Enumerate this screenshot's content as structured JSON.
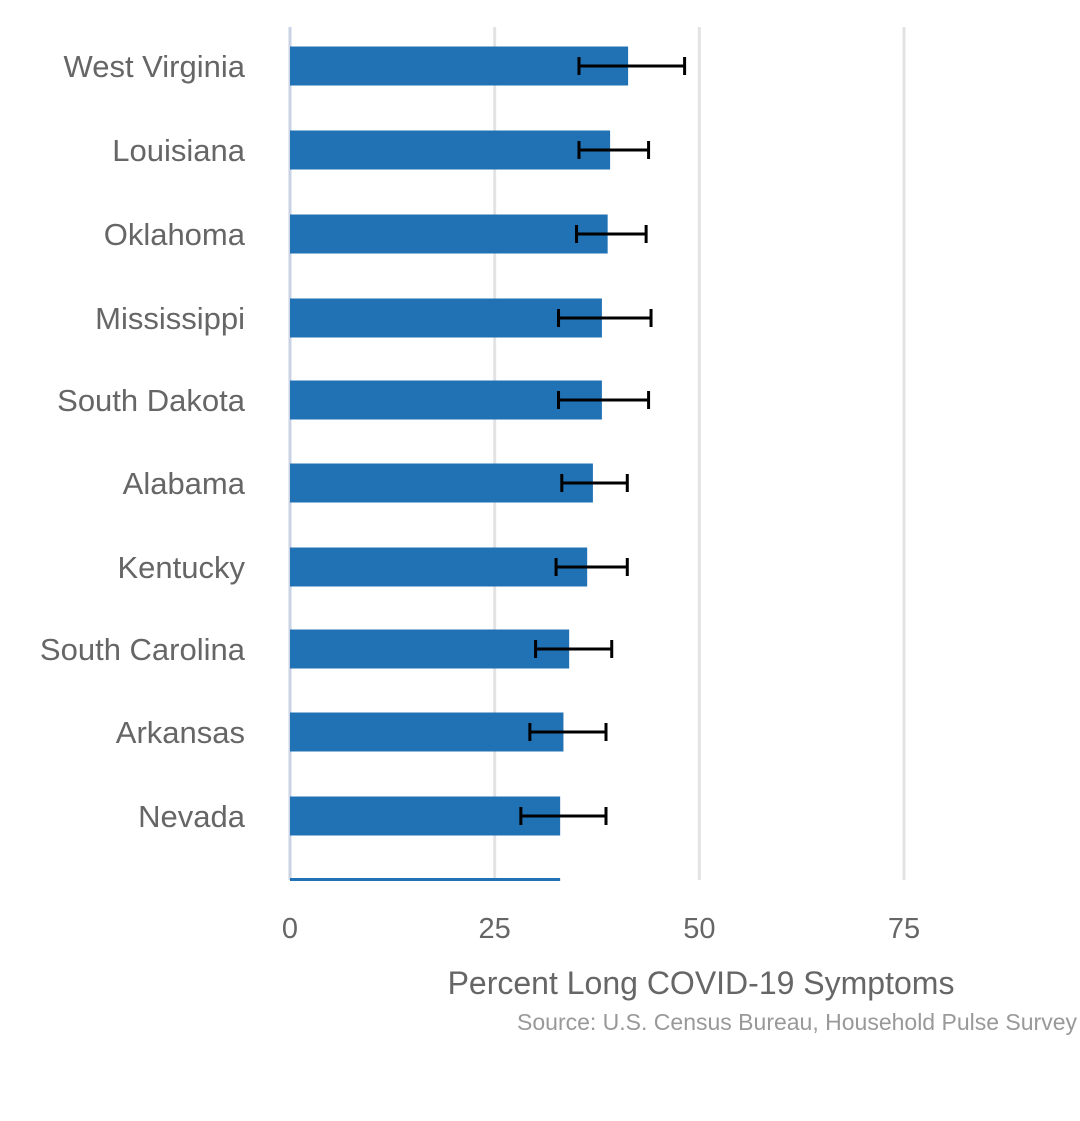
{
  "chart_data": {
    "type": "bar",
    "orientation": "horizontal",
    "categories": [
      "West Virginia",
      "Louisiana",
      "Oklahoma",
      "Mississippi",
      "South Dakota",
      "Alabama",
      "Kentucky",
      "South Carolina",
      "Arkansas",
      "Nevada"
    ],
    "values": [
      41.3,
      39.1,
      38.8,
      38.1,
      38.1,
      37.0,
      36.3,
      34.1,
      33.4,
      33.0
    ],
    "error_low": [
      35.3,
      35.3,
      35.0,
      32.8,
      32.8,
      33.2,
      32.5,
      30.0,
      29.3,
      28.2
    ],
    "error_high": [
      48.2,
      43.8,
      43.5,
      44.1,
      43.8,
      41.2,
      41.2,
      39.3,
      38.6,
      38.6
    ],
    "xlabel": "Percent Long COVID-19 Symptoms",
    "ylabel": "",
    "xlim": [
      0,
      75
    ],
    "xticks": [
      0,
      25,
      50,
      75
    ],
    "tick_labels": [
      "0",
      "25",
      "50",
      "75"
    ],
    "grid": true,
    "bar_color": "#2171b5",
    "error_color": "#000000",
    "grid_color": "#e3e3e3",
    "note": "Source: U.S. Census Bureau, Household Pulse Survey"
  }
}
